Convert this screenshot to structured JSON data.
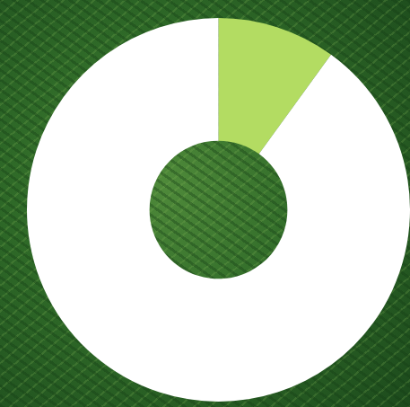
{
  "chart_data": {
    "type": "doughnut",
    "categories": [
      null,
      null
    ],
    "values": [
      10,
      90
    ],
    "colors": [
      "#b3dc62",
      "#ffffff"
    ]
  }
}
